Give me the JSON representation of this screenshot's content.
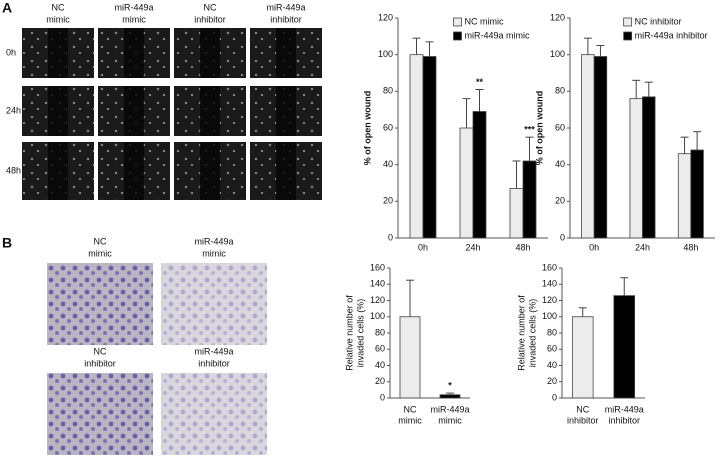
{
  "panels": {
    "a": "A",
    "b": "B"
  },
  "panel_a_images": {
    "columns": [
      [
        "NC",
        "mimic"
      ],
      [
        "miR-449a",
        "mimic"
      ],
      [
        "NC",
        "inhibitor"
      ],
      [
        "miR-449a",
        "inhibitor"
      ]
    ],
    "rows": [
      "0h",
      "24h",
      "48h"
    ]
  },
  "panel_b_images": {
    "labels": [
      [
        "NC",
        "mimic"
      ],
      [
        "miR-449a",
        "mimic"
      ],
      [
        "NC",
        "inhibitor"
      ],
      [
        "miR-449a",
        "inhibitor"
      ]
    ]
  },
  "chart_data": [
    {
      "type": "bar",
      "ylabel": "% of open wound",
      "categories": [
        "0h",
        "24h",
        "48h"
      ],
      "series": [
        {
          "name": "NC mimic",
          "color": "#ececec",
          "values": [
            100,
            60,
            27
          ],
          "errors": [
            9,
            16,
            15
          ]
        },
        {
          "name": "miR-449a mimic",
          "color": "#000000",
          "values": [
            99,
            69,
            42
          ],
          "errors": [
            8,
            12,
            13
          ],
          "significance": [
            null,
            "**",
            "***"
          ]
        }
      ],
      "ylim": [
        0,
        120
      ],
      "yticks": [
        0,
        20,
        40,
        60,
        80,
        100,
        120
      ],
      "legend": "top-right"
    },
    {
      "type": "bar",
      "ylabel": "% of open wound",
      "categories": [
        "0h",
        "24h",
        "48h"
      ],
      "series": [
        {
          "name": "NC inhibitor",
          "color": "#ececec",
          "values": [
            100,
            76,
            46
          ],
          "errors": [
            9,
            10,
            9
          ]
        },
        {
          "name": "miR-449a inhibitor",
          "color": "#000000",
          "values": [
            99,
            77,
            48
          ],
          "errors": [
            6,
            8,
            10
          ]
        }
      ],
      "ylim": [
        0,
        120
      ],
      "yticks": [
        0,
        20,
        40,
        60,
        80,
        100,
        120
      ],
      "legend": "top-right"
    },
    {
      "type": "bar",
      "ylabel": [
        "Relative number of",
        "invaded cells (%)"
      ],
      "categories": [
        [
          "NC",
          "mimic"
        ],
        [
          "miR-449a",
          "mimic"
        ]
      ],
      "series": [
        {
          "colors": [
            "#ececec",
            "#000000"
          ],
          "values": [
            100,
            4
          ],
          "errors": [
            45,
            2
          ],
          "significance": [
            null,
            "*"
          ]
        }
      ],
      "ylim": [
        0,
        160
      ],
      "yticks": [
        0,
        20,
        40,
        60,
        80,
        100,
        120,
        140,
        160
      ]
    },
    {
      "type": "bar",
      "ylabel": [
        "Relative number of",
        "invaded cells (%)"
      ],
      "categories": [
        [
          "NC",
          "inhibitor"
        ],
        [
          "miR-449a",
          "inhibitor"
        ]
      ],
      "series": [
        {
          "colors": [
            "#ececec",
            "#000000"
          ],
          "values": [
            100,
            126
          ],
          "errors": [
            11,
            22
          ]
        }
      ],
      "ylim": [
        0,
        160
      ],
      "yticks": [
        0,
        20,
        40,
        60,
        80,
        100,
        120,
        140,
        160
      ]
    }
  ]
}
